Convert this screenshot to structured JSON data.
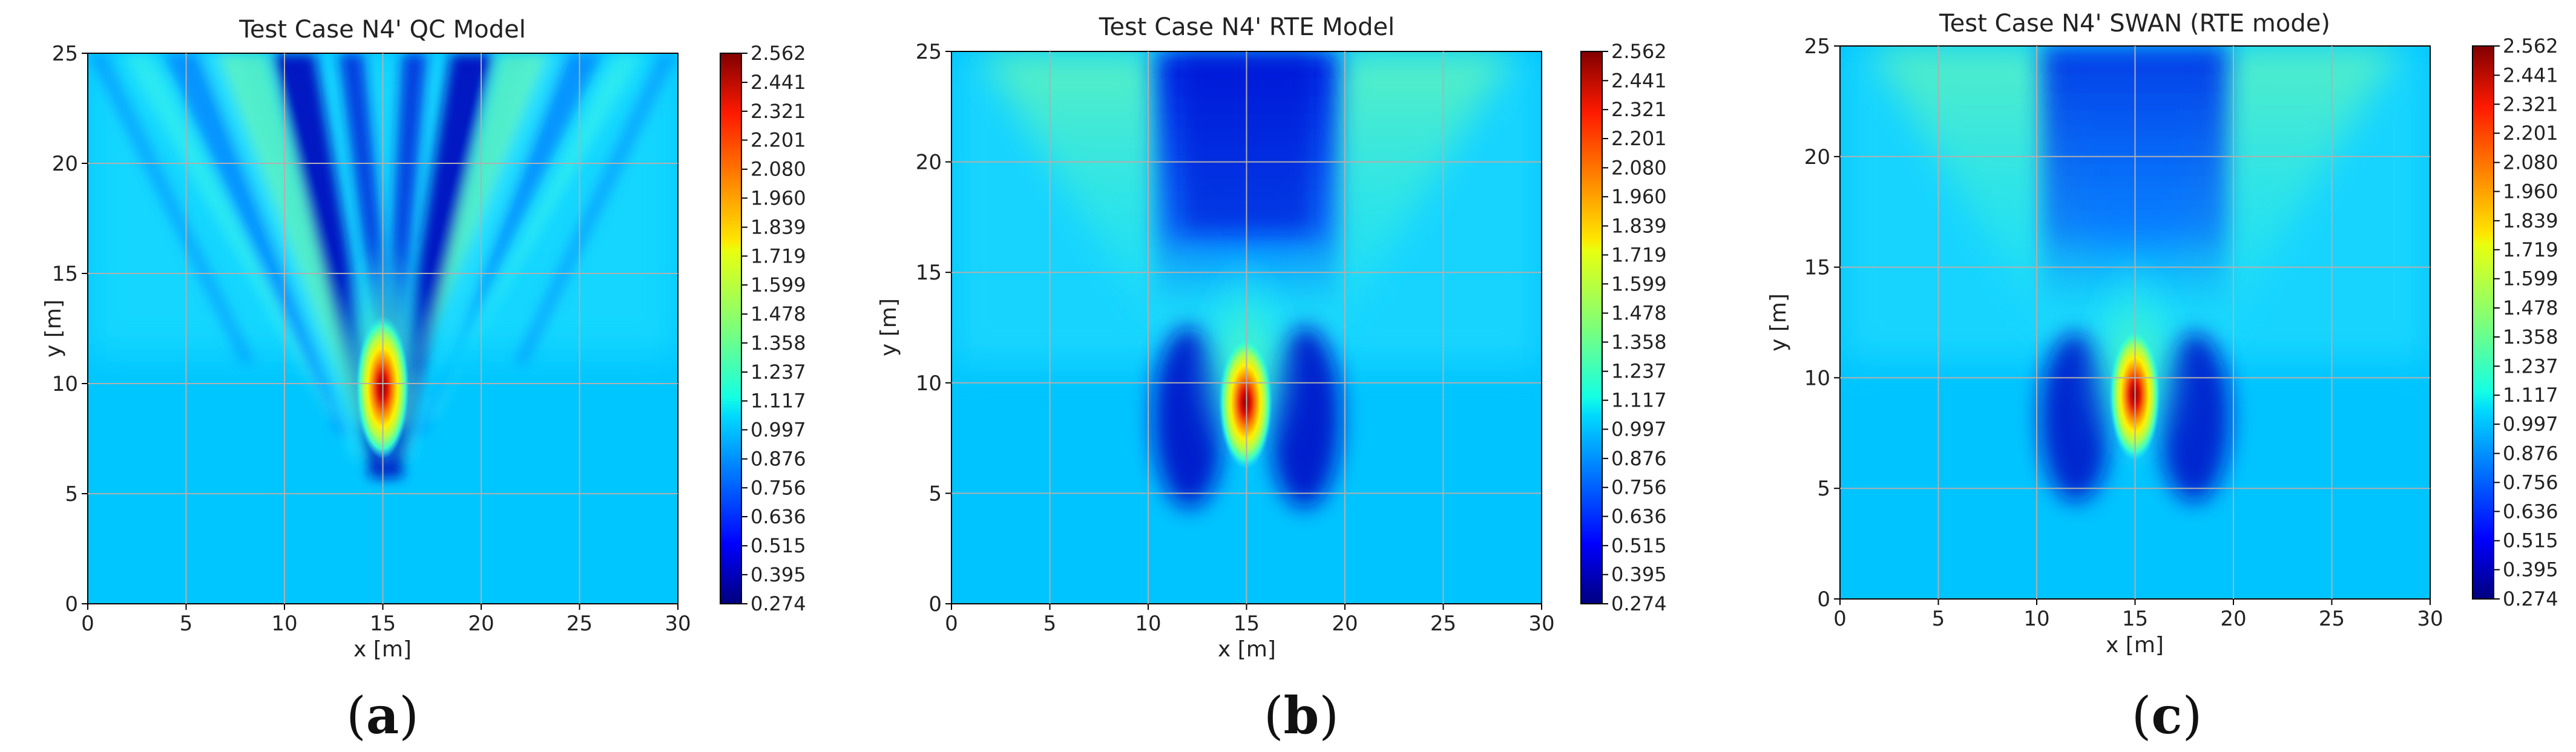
{
  "chart_data": [
    {
      "type": "heatmap",
      "title": "Test Case N4' QC Model",
      "xlabel": "x [m]",
      "ylabel": "y [m]",
      "xlim": [
        0,
        30
      ],
      "ylim": [
        0,
        25
      ],
      "xticks": [
        "0",
        "5",
        "10",
        "15",
        "20",
        "25",
        "30"
      ],
      "yticks": [
        "0",
        "5",
        "10",
        "15",
        "20",
        "25"
      ],
      "grid": true,
      "colormap": "jet",
      "colorbar_ticks": [
        "2.562",
        "2.441",
        "2.321",
        "2.201",
        "2.080",
        "1.960",
        "1.839",
        "1.719",
        "1.599",
        "1.478",
        "1.358",
        "1.237",
        "1.117",
        "0.997",
        "0.876",
        "0.756",
        "0.636",
        "0.515",
        "0.395",
        "0.274"
      ],
      "colorbar_range": [
        0.274,
        2.562
      ],
      "peak": {
        "x": 15,
        "y": 9.5,
        "value": 2.562
      },
      "caption": {
        "open": "(",
        "letter": "a",
        "close": ")"
      }
    },
    {
      "type": "heatmap",
      "title": "Test Case N4' RTE Model",
      "xlabel": "x [m]",
      "ylabel": "y [m]",
      "xlim": [
        0,
        30
      ],
      "ylim": [
        0,
        25
      ],
      "xticks": [
        "0",
        "5",
        "10",
        "15",
        "20",
        "25",
        "30"
      ],
      "yticks": [
        "0",
        "5",
        "10",
        "15",
        "20",
        "25"
      ],
      "grid": true,
      "colormap": "jet",
      "colorbar_ticks": [
        "2.562",
        "2.441",
        "2.321",
        "2.201",
        "2.080",
        "1.960",
        "1.839",
        "1.719",
        "1.599",
        "1.478",
        "1.358",
        "1.237",
        "1.117",
        "0.997",
        "0.876",
        "0.756",
        "0.636",
        "0.515",
        "0.395",
        "0.274"
      ],
      "colorbar_range": [
        0.274,
        2.562
      ],
      "peak": {
        "x": 15,
        "y": 9.2,
        "value": 2.562
      },
      "caption": {
        "open": "(",
        "letter": "b",
        "close": ")"
      }
    },
    {
      "type": "heatmap",
      "title": "Test Case N4' SWAN (RTE mode)",
      "xlabel": "x [m]",
      "ylabel": "y [m]",
      "xlim": [
        0,
        30
      ],
      "ylim": [
        0,
        25
      ],
      "xticks": [
        "0",
        "5",
        "10",
        "15",
        "20",
        "25",
        "30"
      ],
      "yticks": [
        "0",
        "5",
        "10",
        "15",
        "20",
        "25"
      ],
      "grid": true,
      "colormap": "jet",
      "colorbar_ticks": [
        "2.562",
        "2.441",
        "2.321",
        "2.201",
        "2.080",
        "1.960",
        "1.839",
        "1.719",
        "1.599",
        "1.478",
        "1.358",
        "1.237",
        "1.117",
        "0.997",
        "0.876",
        "0.756",
        "0.636",
        "0.515",
        "0.395",
        "0.274"
      ],
      "colorbar_range": [
        0.274,
        2.562
      ],
      "peak": {
        "x": 15,
        "y": 9.6,
        "value": 2.562
      },
      "caption": {
        "open": "(",
        "letter": "c",
        "close": ")"
      }
    }
  ]
}
